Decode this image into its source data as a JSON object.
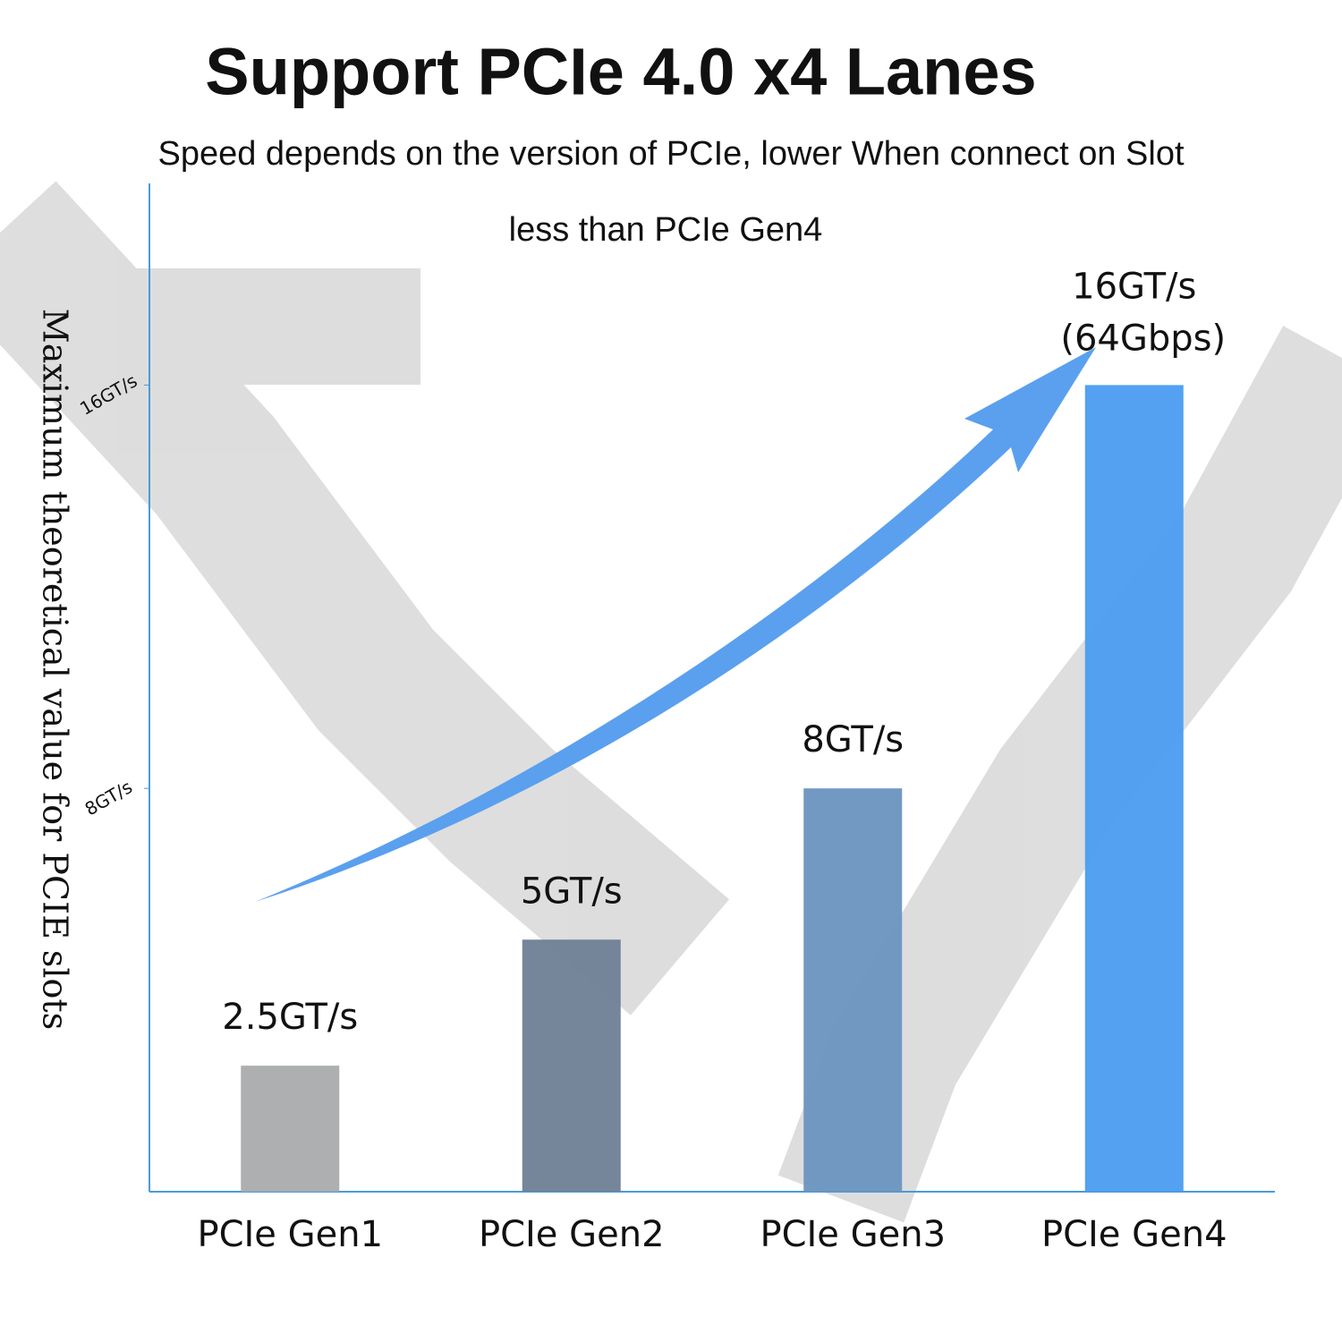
{
  "chart_data": {
    "type": "bar",
    "title": "Support PCIe 4.0 x4 Lanes",
    "subtitle": [
      "Speed depends on the version of PCIe, lower When connect on Slot",
      "less than PCIe Gen4"
    ],
    "y_label": "Maximum theoretical value for PCIE slots",
    "categories": [
      "PCIe Gen1",
      "PCIe Gen2",
      "PCIe Gen3",
      "PCIe Gen4"
    ],
    "values": [
      2.5,
      5,
      8,
      16
    ],
    "value_labels": [
      "2.5GT/s",
      "5GT/s",
      "8GT/s",
      "16GT/s"
    ],
    "annotations": [
      "(64Gbps)"
    ],
    "colors": [
      "#a9abad",
      "#6e7f96",
      "#6a93bf",
      "#4a9cef"
    ],
    "ylim": [
      0,
      20
    ],
    "yticks": [
      {
        "value": 8,
        "label": "8GT/s"
      },
      {
        "value": 16,
        "label": "16GT/s"
      }
    ],
    "axis_color": "#4a9cd6"
  }
}
